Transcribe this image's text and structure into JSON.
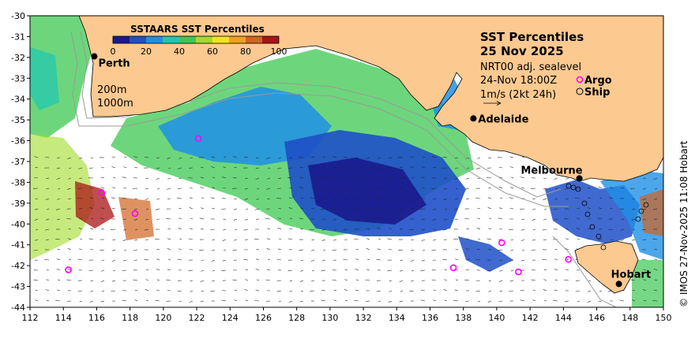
{
  "map": {
    "lon_range": [
      112,
      150
    ],
    "lat_range": [
      -44,
      -30
    ],
    "x_ticks": [
      112,
      114,
      116,
      118,
      120,
      122,
      124,
      126,
      128,
      130,
      132,
      134,
      136,
      138,
      140,
      142,
      144,
      146,
      148,
      150
    ],
    "y_ticks": [
      -30,
      -31,
      -32,
      -33,
      -34,
      -35,
      -36,
      -37,
      -38,
      -39,
      -40,
      -41,
      -42,
      -43,
      -44
    ],
    "land_color": "#fcc990",
    "ocean_color": "#ffffff"
  },
  "title": {
    "line1": "SST Percentiles",
    "line2": "25 Nov 2025"
  },
  "info": {
    "line1": "NRT00 adj. sealevel",
    "line2": "24-Nov 18:00Z",
    "line3": "1m/s (2kt 24h)"
  },
  "legend": {
    "argo": "Argo",
    "ship": "Ship",
    "argo_color": "#ff00ff",
    "ship_color": "#000000"
  },
  "depth_labels": {
    "d200": "200m",
    "d1000": "1000m"
  },
  "colorbar": {
    "title": "SSTAARS SST Percentiles",
    "ticks": [
      "0",
      "20",
      "40",
      "60",
      "80",
      "100"
    ],
    "colors": [
      "#1a1a8c",
      "#1e50c8",
      "#1e90e6",
      "#1ec8b4",
      "#3cc850",
      "#a0dc28",
      "#f0e61e",
      "#f0a01e",
      "#d2641e",
      "#aa1414"
    ]
  },
  "cities": [
    {
      "name": "Perth",
      "lon": 115.86,
      "lat": -31.95
    },
    {
      "name": "Adelaide",
      "lon": 138.6,
      "lat": -34.93
    },
    {
      "name": "Melbourne",
      "lon": 144.96,
      "lat": -37.81
    },
    {
      "name": "Hobart",
      "lon": 147.33,
      "lat": -42.88
    }
  ],
  "argo_floats": [
    {
      "lon": 122.1,
      "lat": -35.9
    },
    {
      "lon": 116.3,
      "lat": -38.5
    },
    {
      "lon": 118.3,
      "lat": -39.5
    },
    {
      "lon": 114.3,
      "lat": -42.2
    },
    {
      "lon": 137.4,
      "lat": -42.1
    },
    {
      "lon": 140.3,
      "lat": -40.9
    },
    {
      "lon": 141.3,
      "lat": -42.3
    },
    {
      "lon": 144.3,
      "lat": -41.7
    }
  ],
  "credit": "© IMOS 27-Nov-2025 11:08 Hobart"
}
